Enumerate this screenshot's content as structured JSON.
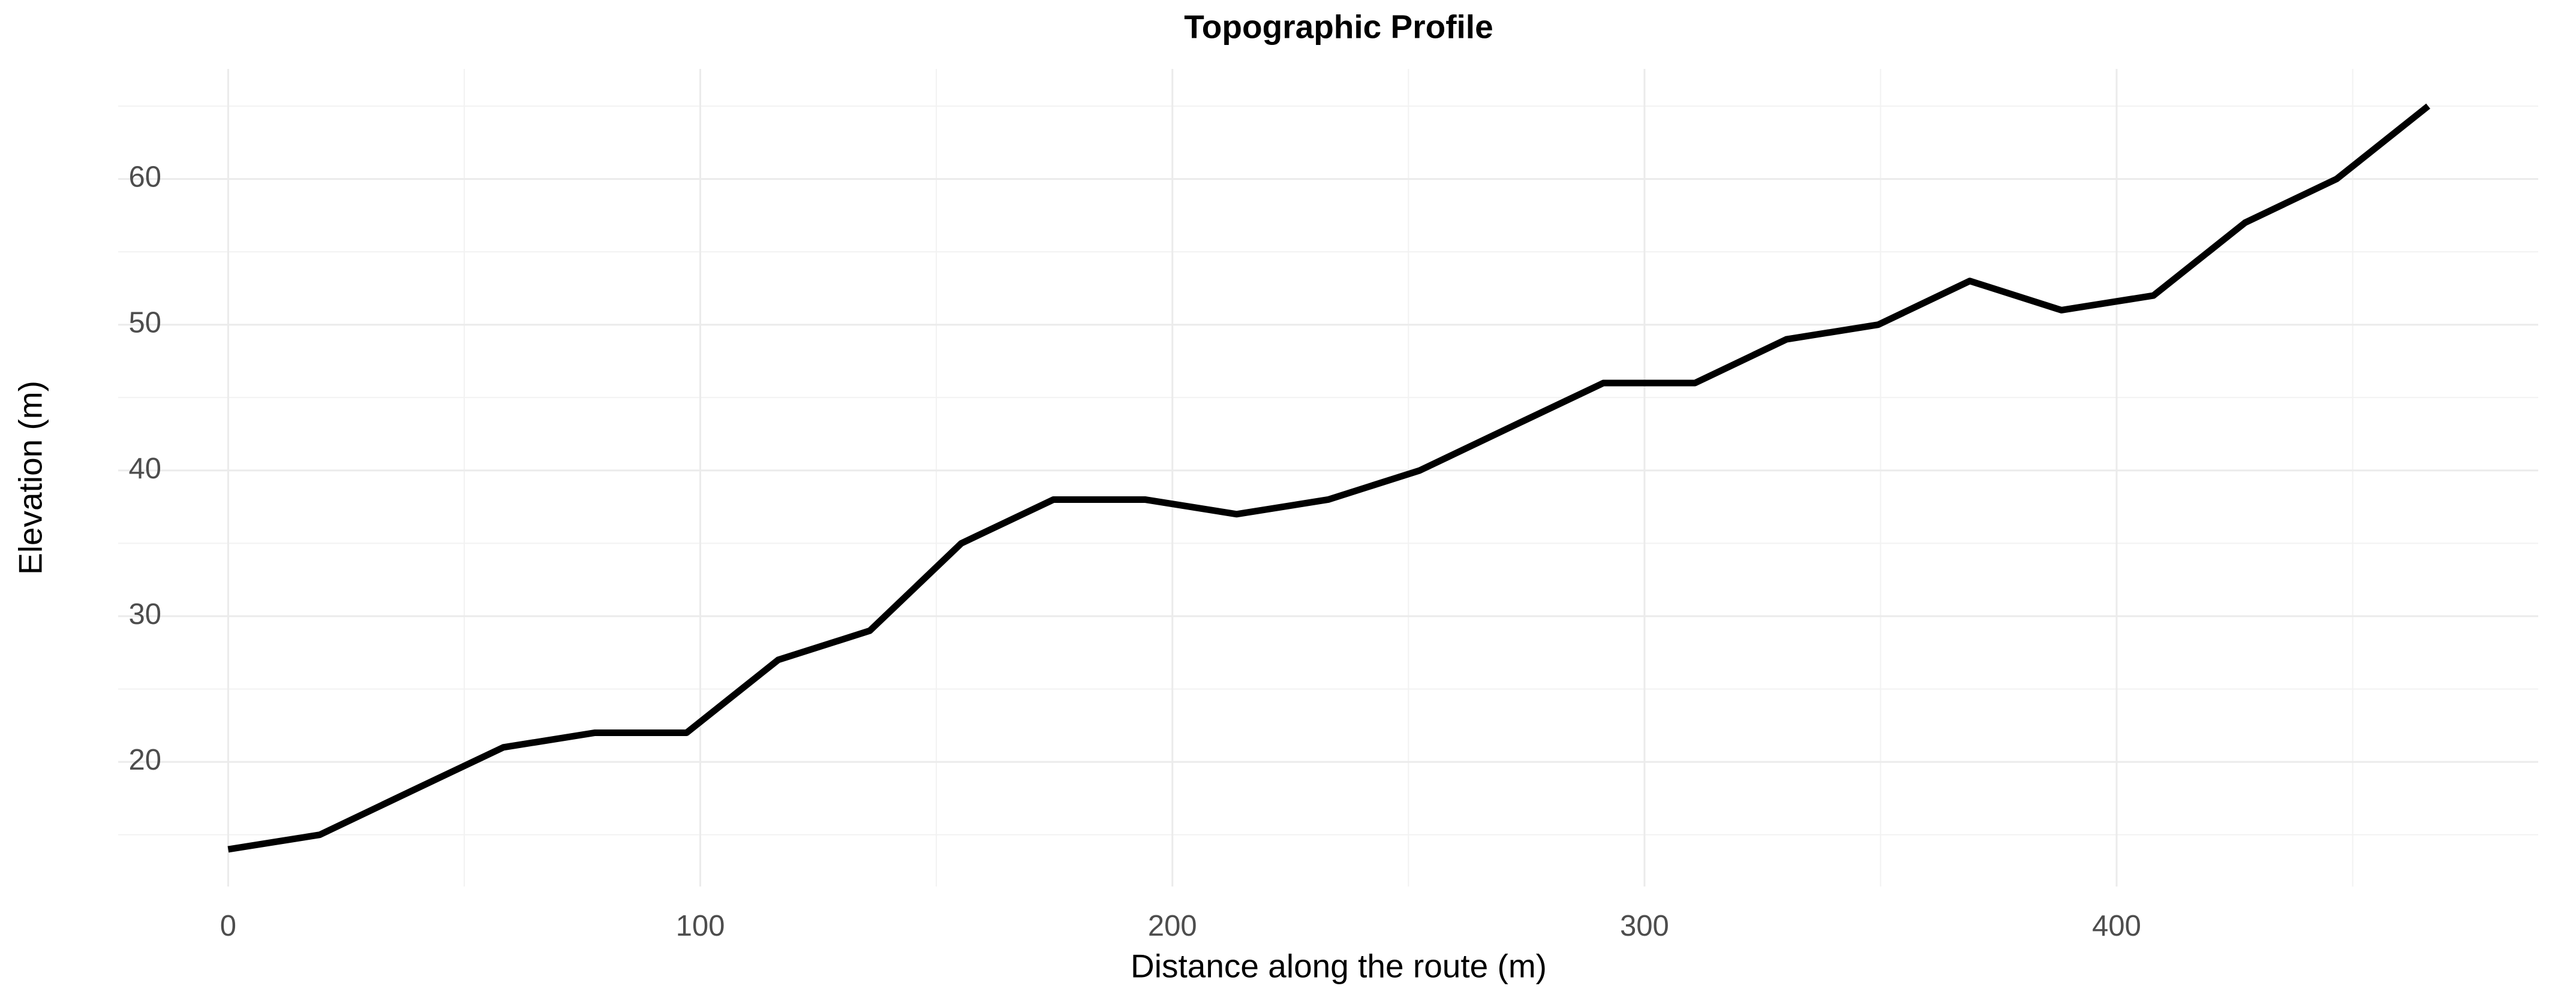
{
  "chart_data": {
    "type": "line",
    "title": "Topographic Profile",
    "x_label": "Distance along the route (m)",
    "y_label": "Elevation (m)",
    "x": [
      0,
      19.4,
      38.8,
      58.3,
      77.7,
      97.1,
      116.5,
      135.9,
      155.3,
      174.8,
      194.2,
      213.6,
      233,
      252.4,
      271.8,
      291.3,
      310.7,
      330.1,
      349.5,
      368.9,
      388.3,
      407.8,
      427.2,
      446.6,
      466
    ],
    "series": [
      {
        "name": "Elevation",
        "color": "#000000",
        "values": [
          14,
          15,
          18,
          21,
          22,
          22,
          27,
          29,
          35,
          38,
          38,
          37,
          38,
          40,
          43,
          46,
          46,
          49,
          50,
          53,
          51,
          52,
          57,
          60,
          65
        ]
      }
    ],
    "xlim": [
      -23.3,
      489.3
    ],
    "xticks": [
      0,
      100,
      200,
      300,
      400
    ],
    "x_minor_ticks": [
      50,
      150,
      250,
      350,
      450
    ],
    "ylim": [
      11.45,
      67.55
    ],
    "yticks": [
      20,
      30,
      40,
      50,
      60
    ],
    "y_minor_ticks": [
      15,
      25,
      35,
      45,
      55,
      65
    ],
    "grid": true
  }
}
